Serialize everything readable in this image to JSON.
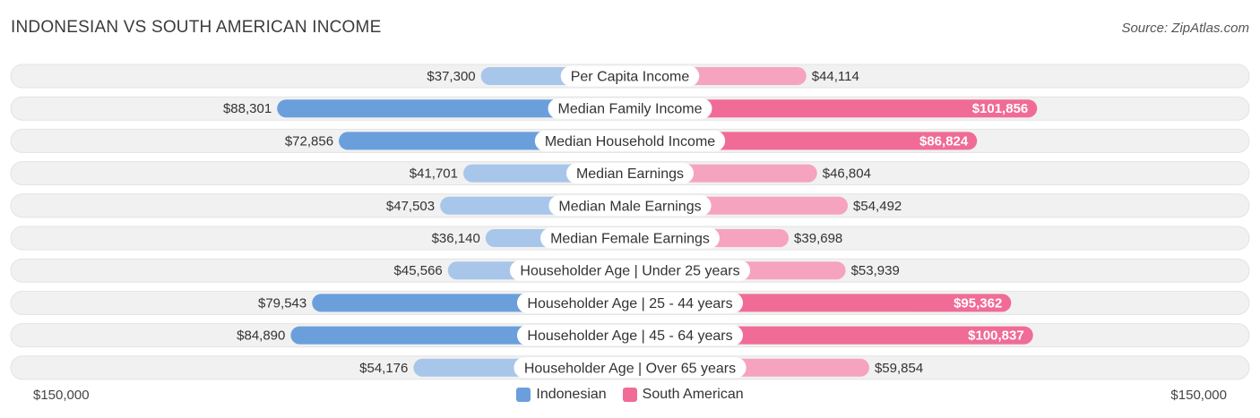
{
  "header": {
    "title": "INDONESIAN VS SOUTH AMERICAN INCOME",
    "source": "Source: ZipAtlas.com"
  },
  "colors": {
    "indonesian_strong": "#6a9fdc",
    "indonesian_light": "#a8c6ea",
    "south_american_strong": "#f06b96",
    "south_american_light": "#f5a3bf",
    "track": "#f1f1f1"
  },
  "chart_data": {
    "type": "bar",
    "orientation": "diverging-horizontal",
    "title": "INDONESIAN VS SOUTH AMERICAN INCOME",
    "axis_max": 150000,
    "axis_left_label": "$150,000",
    "axis_right_label": "$150,000",
    "categories": [
      "Per Capita Income",
      "Median Family Income",
      "Median Household Income",
      "Median Earnings",
      "Median Male Earnings",
      "Median Female Earnings",
      "Householder Age | Under 25 years",
      "Householder Age | 25 - 44 years",
      "Householder Age | 45 - 64 years",
      "Householder Age | Over 65 years"
    ],
    "series": [
      {
        "name": "Indonesian",
        "values": [
          37300,
          88301,
          72856,
          41701,
          47503,
          36140,
          45566,
          79543,
          84890,
          54176
        ],
        "labels": [
          "$37,300",
          "$88,301",
          "$72,856",
          "$41,701",
          "$47,503",
          "$36,140",
          "$45,566",
          "$79,543",
          "$84,890",
          "$54,176"
        ]
      },
      {
        "name": "South American",
        "values": [
          44114,
          101856,
          86824,
          46804,
          54492,
          39698,
          53939,
          95362,
          100837,
          59854
        ],
        "labels": [
          "$44,114",
          "$101,856",
          "$86,824",
          "$46,804",
          "$54,492",
          "$39,698",
          "$53,939",
          "$95,362",
          "$100,837",
          "$59,854"
        ]
      }
    ],
    "legend": {
      "position": "bottom-center",
      "entries": [
        "Indonesian",
        "South American"
      ]
    }
  }
}
